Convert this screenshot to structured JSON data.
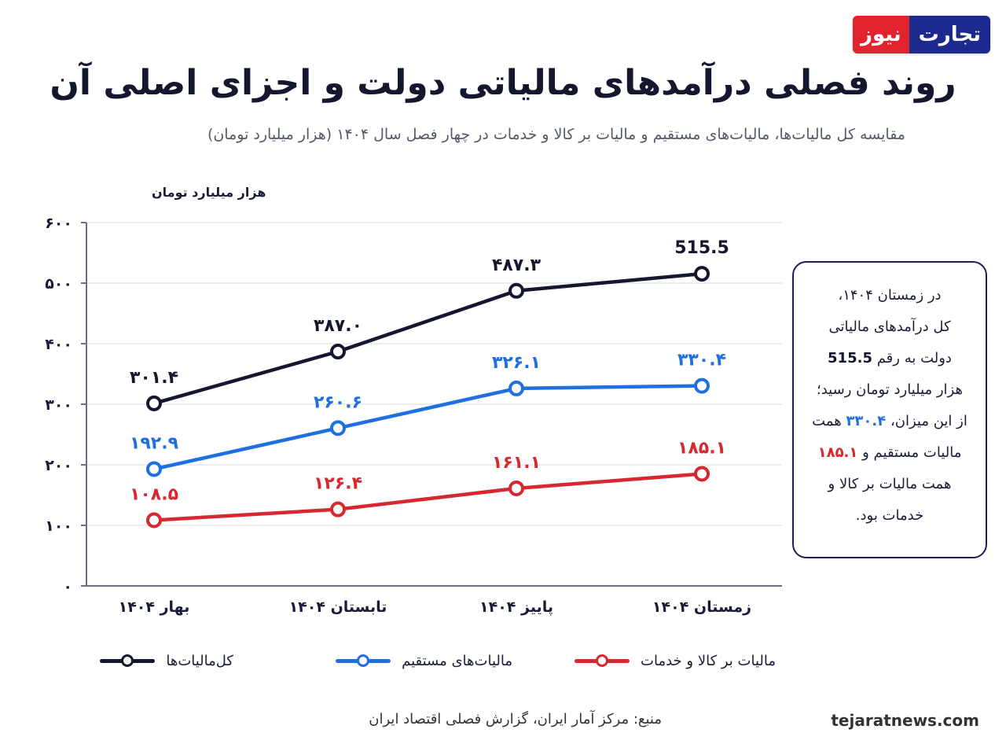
{
  "logo": {
    "part_a": "تجارت",
    "part_b": "نیوز"
  },
  "title": "روند فصلی درآمدهای مالیاتی دولت و اجزای اصلی آن",
  "subtitle": "مقایسه کل مالیات‌ها، مالیات‌های مستقیم و مالیات بر کالا و خدمات در چهار فصل سال ۱۴۰۴ (هزار میلیارد تومان)",
  "colors": {
    "total": "#15172e",
    "direct": "#1f6fe0",
    "goods": "#d7272f",
    "axis": "#6b6f80",
    "grid": "#e6e7ec"
  },
  "chart_data": {
    "type": "line",
    "ylabel": "هزار میلیارد تومان",
    "ylim": [
      0,
      600
    ],
    "ytick_labels": [
      "۰",
      "۱۰۰",
      "۲۰۰",
      "۳۰۰",
      "۴۰۰",
      "۵۰۰",
      "۶۰۰"
    ],
    "categories": [
      "بهار ۱۴۰۴",
      "تابستان ۱۴۰۴",
      "پاییز ۱۴۰۴",
      "زمستان ۱۴۰۴"
    ],
    "grid": "horizontal",
    "series": [
      {
        "name": "کل‌مالیات‌ها",
        "color_key": "total",
        "values": [
          301.4,
          387.0,
          487.3,
          515.5
        ],
        "labels": [
          "۳۰۱.۴",
          "۳۸۷.۰",
          "۴۸۷.۳",
          "515.5"
        ]
      },
      {
        "name": "مالیات‌های مستقیم",
        "color_key": "direct",
        "values": [
          192.9,
          260.6,
          326.1,
          330.4
        ],
        "labels": [
          "۱۹۲.۹",
          "۲۶۰.۶",
          "۳۲۶.۱",
          "۳۳۰.۴"
        ]
      },
      {
        "name": "مالیات بر کالا و خدمات",
        "color_key": "goods",
        "values": [
          108.5,
          126.4,
          161.1,
          185.1
        ],
        "labels": [
          "۱۰۸.۵",
          "۱۲۶.۴",
          "۱۶۱.۱",
          "۱۸۵.۱"
        ]
      }
    ]
  },
  "callout": {
    "t1": "در زمستان ۱۴۰۴،",
    "t2": "کل درآمدهای مالیاتی",
    "t3": "دولت به رقم",
    "v1": "515.5",
    "t4": "هزار میلیارد تومان رسید؛",
    "t5": "از این میزان،",
    "v2": "۳۳۰.۴",
    "t6": "همت",
    "t7": "مالیات مستقیم و",
    "v3": "۱۸۵.۱",
    "t8": "همت مالیات بر کالا و",
    "t9": "خدمات بود."
  },
  "source": "منبع: مرکز آمار ایران، گزارش فصلی اقتصاد ایران",
  "site": "tejaratnews.com"
}
